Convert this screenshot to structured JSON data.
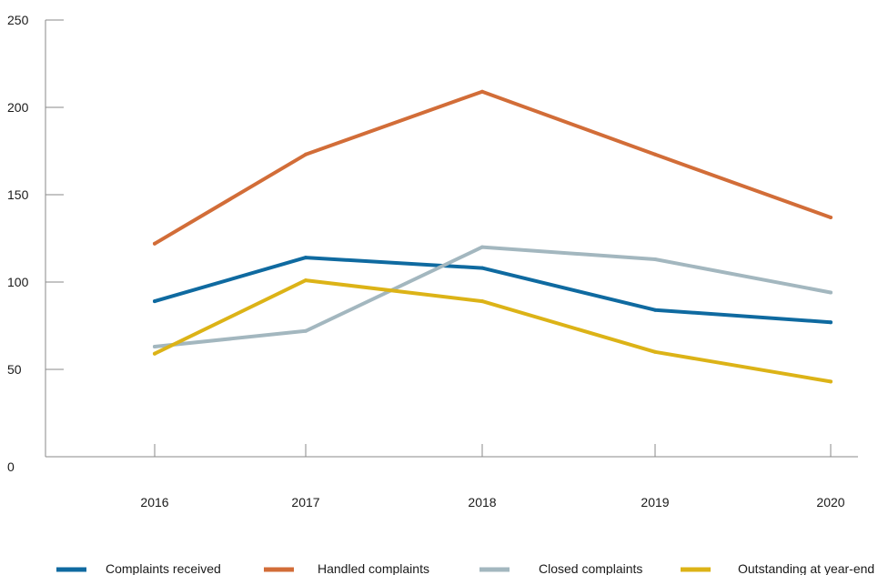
{
  "chart_data": {
    "type": "line",
    "title": "",
    "xlabel": "",
    "ylabel": "",
    "categories": [
      "2016",
      "2017",
      "2018",
      "2019",
      "2020"
    ],
    "y_ticks": [
      "0",
      "50",
      "100",
      "150",
      "200",
      "250"
    ],
    "ylim": [
      0,
      250
    ],
    "grid": false,
    "legend_position": "bottom",
    "series": [
      {
        "name": "Complaints received",
        "color": "#0f6aa0",
        "values": [
          89,
          114,
          108,
          84,
          77
        ]
      },
      {
        "name": "Handled complaints",
        "color": "#d26d38",
        "values": [
          122,
          173,
          209,
          173,
          137
        ]
      },
      {
        "name": "Closed complaints",
        "color": "#a3b7bf",
        "values": [
          63,
          72,
          120,
          113,
          94
        ]
      },
      {
        "name": "Outstanding at year-end",
        "color": "#dcb317",
        "values": [
          59,
          101,
          89,
          60,
          43
        ]
      }
    ]
  }
}
